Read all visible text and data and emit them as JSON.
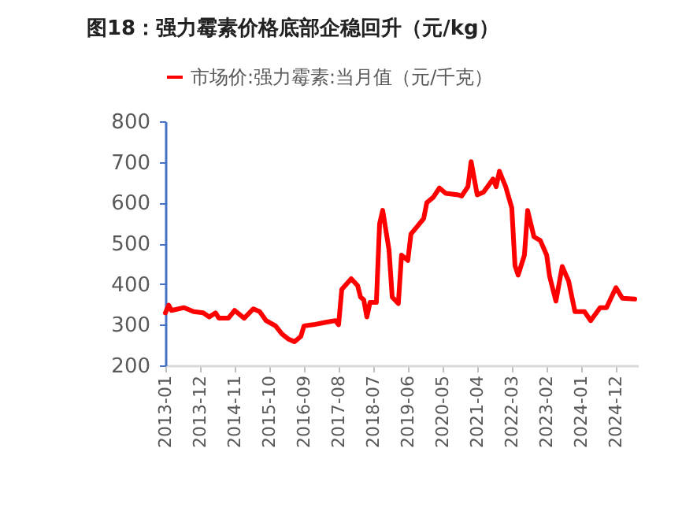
{
  "chart_data": {
    "type": "line",
    "title": "图18：强力霉素价格底部企稳回升（元/kg）",
    "x": [
      "2013-01",
      "2013-02",
      "2013-03",
      "2013-07",
      "2013-10",
      "2014-01",
      "2014-03",
      "2014-05",
      "2014-06",
      "2014-09",
      "2014-11",
      "2015-02",
      "2015-05",
      "2015-07",
      "2015-09",
      "2015-12",
      "2016-02",
      "2016-04",
      "2016-06",
      "2016-08",
      "2016-09",
      "2016-12",
      "2017-04",
      "2017-07",
      "2017-08",
      "2017-09",
      "2017-12",
      "2018-02",
      "2018-03",
      "2018-04",
      "2018-05",
      "2018-06",
      "2018-08",
      "2018-09",
      "2018-10",
      "2018-12",
      "2019-01",
      "2019-03",
      "2019-04",
      "2019-06",
      "2019-07",
      "2019-09",
      "2019-11",
      "2019-12",
      "2020-02",
      "2020-04",
      "2020-06",
      "2020-10",
      "2020-11",
      "2021-01",
      "2021-02",
      "2021-04",
      "2021-06",
      "2021-09",
      "2021-10",
      "2021-11",
      "2022-01",
      "2022-03",
      "2022-04",
      "2022-05",
      "2022-07",
      "2022-08",
      "2022-10",
      "2022-12",
      "2023-02",
      "2023-03",
      "2023-05",
      "2023-07",
      "2023-09",
      "2023-11",
      "2024-02",
      "2024-04",
      "2024-07",
      "2024-09",
      "2024-12",
      "2025-02",
      "2025-06"
    ],
    "series": [
      {
        "name": "市场价:强力霉素:当月值（元/千克）",
        "color": "#ff0000",
        "values": [
          329,
          348,
          335,
          342,
          332,
          329,
          319,
          329,
          316,
          316,
          335,
          316,
          339,
          332,
          310,
          297,
          277,
          265,
          258,
          271,
          297,
          300,
          306,
          310,
          300,
          387,
          413,
          396,
          368,
          361,
          319,
          355,
          355,
          548,
          581,
          484,
          368,
          352,
          471,
          458,
          523,
          542,
          561,
          600,
          613,
          636,
          623,
          619,
          616,
          639,
          701,
          619,
          626,
          658,
          639,
          677,
          639,
          587,
          445,
          422,
          471,
          581,
          516,
          507,
          471,
          419,
          358,
          443,
          407,
          332,
          332,
          310,
          342,
          342,
          391,
          365,
          363
        ]
      }
    ],
    "xlim": [
      "2013-01",
      "2025-07"
    ],
    "xticks": [
      "2013-01",
      "2013-12",
      "2014-11",
      "2015-10",
      "2016-09",
      "2017-08",
      "2018-07",
      "2019-06",
      "2020-05",
      "2021-04",
      "2022-03",
      "2023-02",
      "2024-01",
      "2024-12"
    ],
    "ylim": [
      200,
      800
    ],
    "yticks": [
      200,
      300,
      400,
      500,
      600,
      700,
      800
    ],
    "grid": false,
    "legend": "top",
    "marker": "none",
    "line_style": "solid"
  }
}
